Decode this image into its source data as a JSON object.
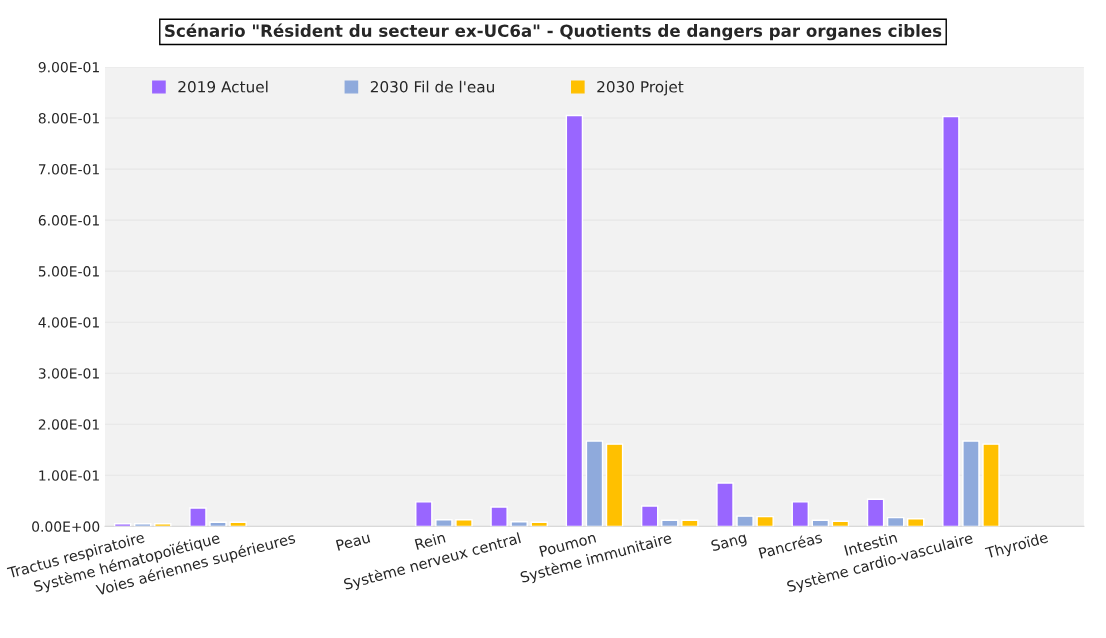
{
  "chart_data": {
    "type": "bar",
    "title": "Scénario \"Résident du secteur ex-UC6a\" - Quotients de dangers par organes cibles",
    "categories": [
      "Tractus respiratoire",
      "Système hématopoïétique",
      "Voies aériennes supérieures",
      "Peau",
      "Rein",
      "Système nerveux central",
      "Poumon",
      "Système immunitaire",
      "Sang",
      "Pancréas",
      "Intestin",
      "Système cardio-vasculaire",
      "Thyroïde"
    ],
    "series": [
      {
        "name": "2019 Actuel",
        "color": "#9966ff",
        "values": [
          0.005,
          0.036,
          null,
          null,
          0.048,
          0.038,
          0.805,
          0.04,
          0.085,
          0.048,
          0.053,
          0.803,
          null
        ]
      },
      {
        "name": "2030 Fil de l'eau",
        "color": "#8faadc",
        "values": [
          0.005,
          0.008,
          null,
          null,
          0.013,
          0.009,
          0.167,
          0.012,
          0.02,
          0.012,
          0.017,
          0.167,
          null
        ]
      },
      {
        "name": "2030 Projet",
        "color": "#ffc000",
        "values": [
          0.005,
          0.008,
          null,
          null,
          0.013,
          0.008,
          0.161,
          0.012,
          0.019,
          0.01,
          0.015,
          0.161,
          null
        ]
      }
    ],
    "ylim": [
      0,
      0.9
    ],
    "yticks": [
      {
        "value": 0,
        "label": "0.00E+00"
      },
      {
        "value": 0.1,
        "label": "1.00E-01"
      },
      {
        "value": 0.2,
        "label": "2.00E-01"
      },
      {
        "value": 0.3,
        "label": "3.00E-01"
      },
      {
        "value": 0.4,
        "label": "4.00E-01"
      },
      {
        "value": 0.5,
        "label": "5.00E-01"
      },
      {
        "value": 0.6,
        "label": "6.00E-01"
      },
      {
        "value": 0.7,
        "label": "7.00E-01"
      },
      {
        "value": 0.8,
        "label": "8.00E-01"
      },
      {
        "value": 0.9,
        "label": "9.00E-01"
      }
    ],
    "grid": "y",
    "legend": "top"
  }
}
